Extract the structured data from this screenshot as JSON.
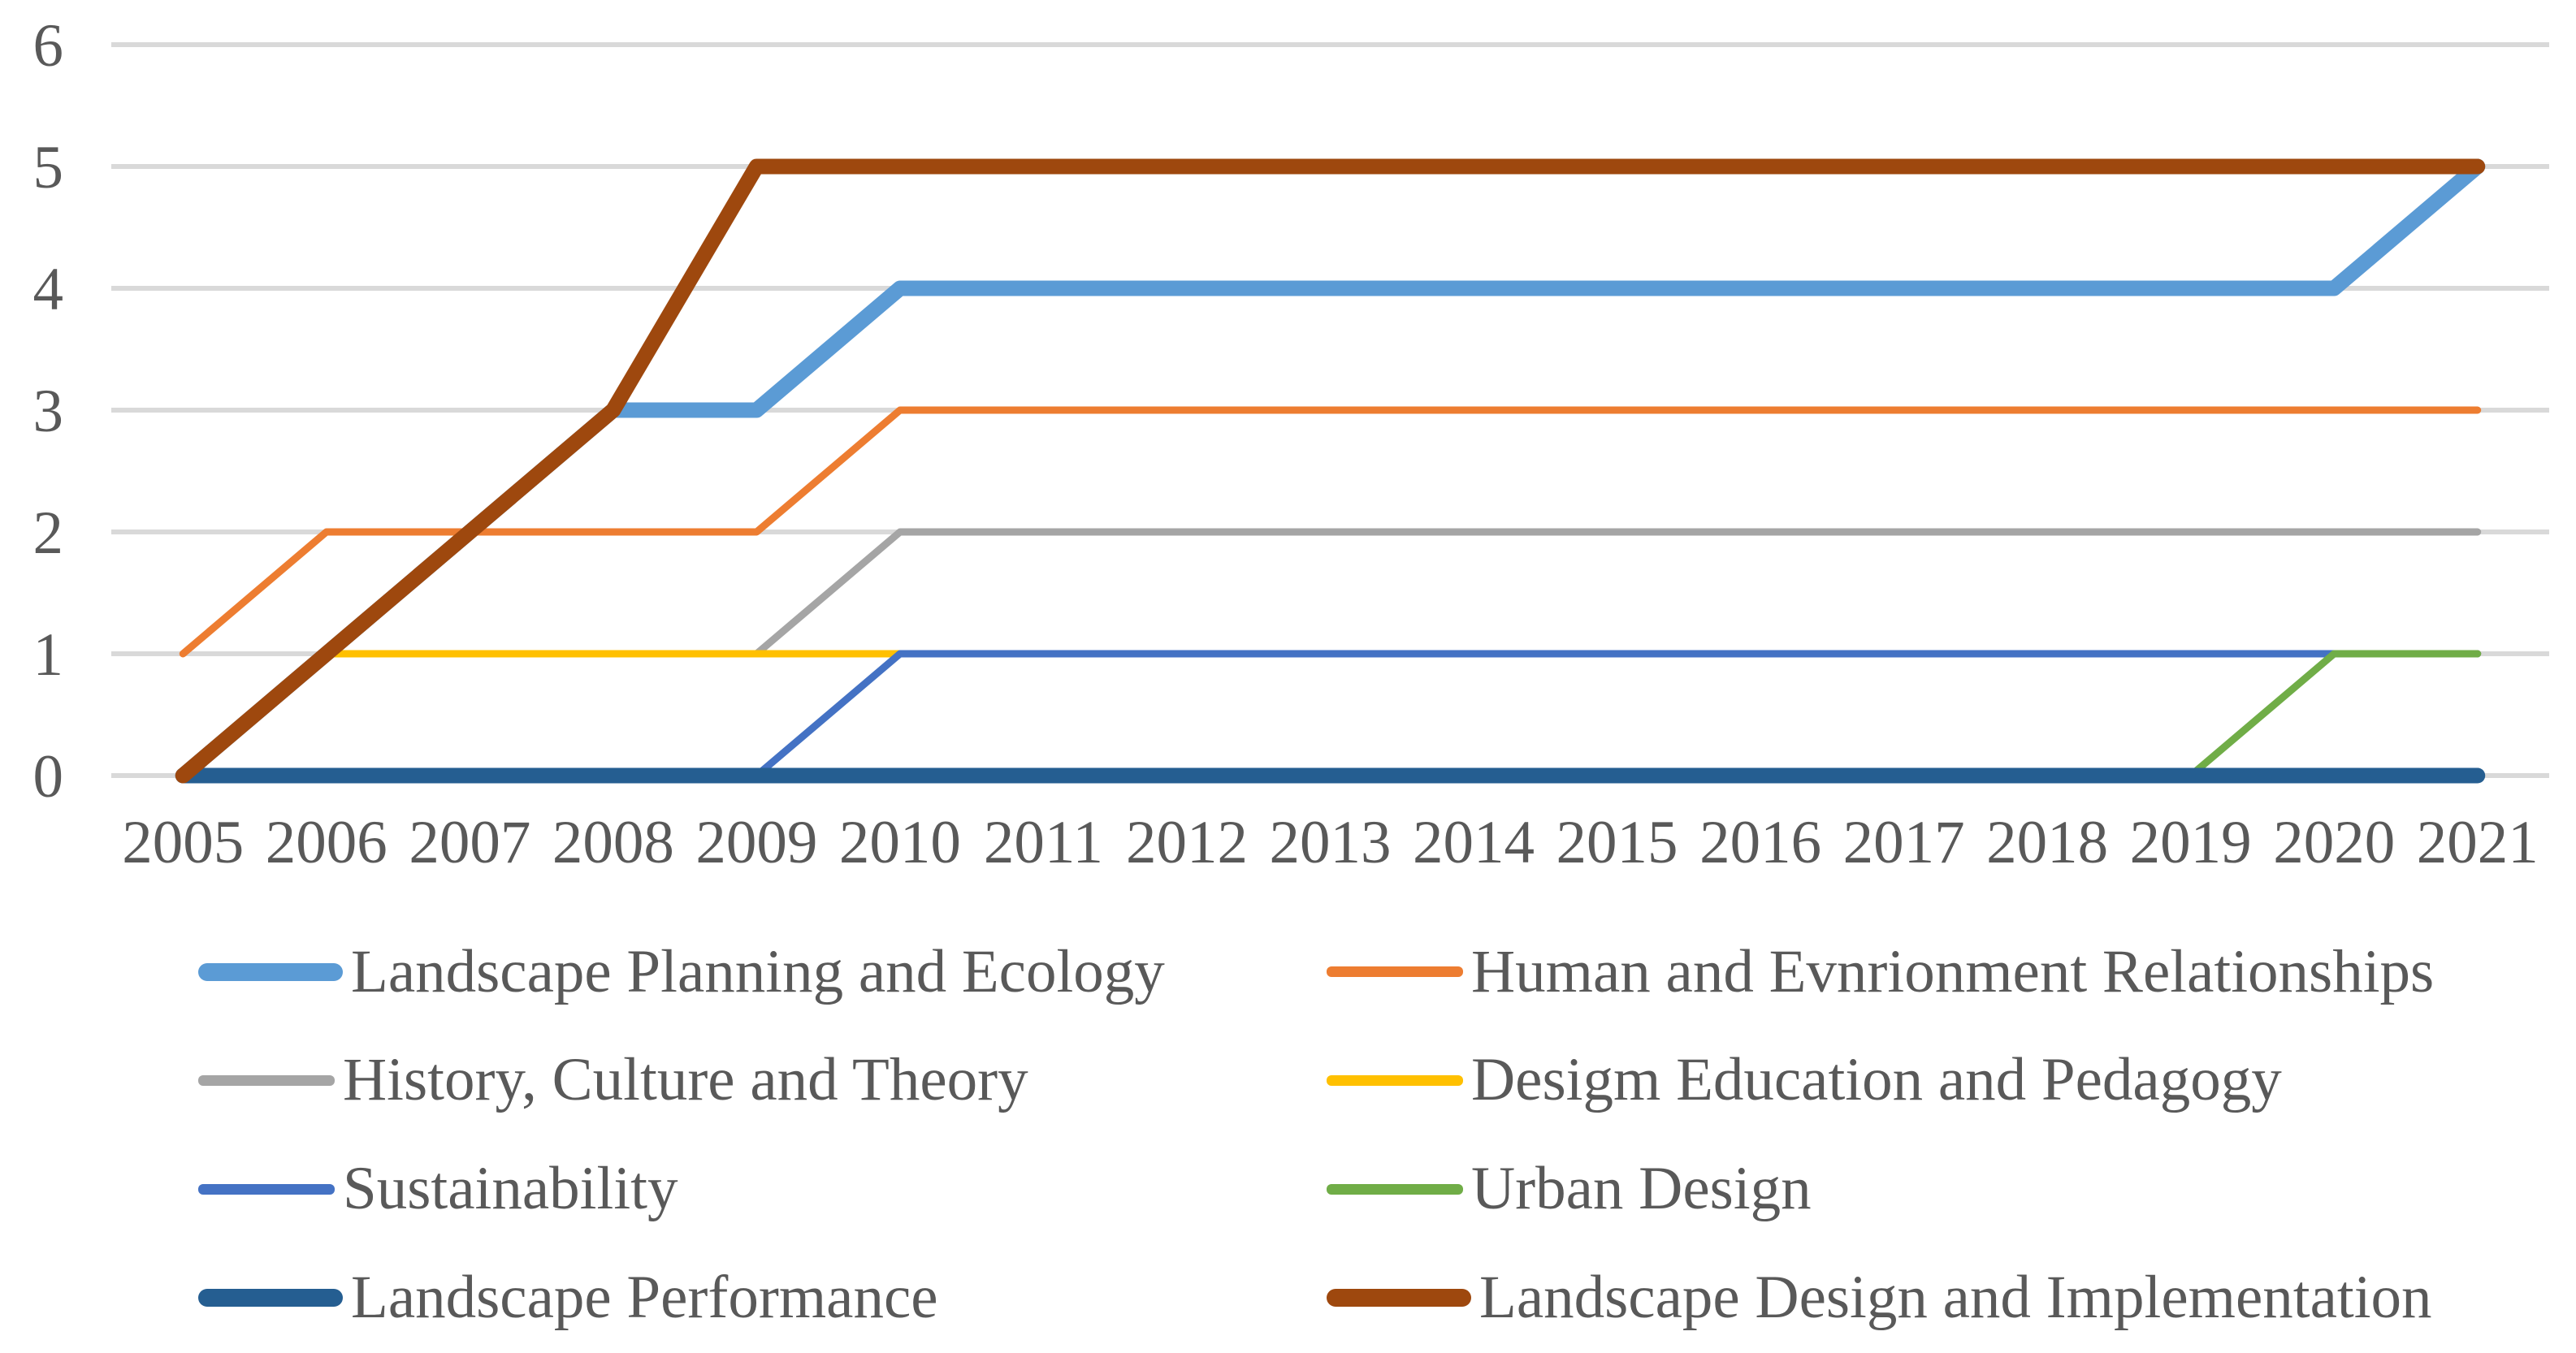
{
  "chart_data": {
    "type": "line",
    "title": "",
    "xlabel": "",
    "ylabel": "",
    "categories": [
      2005,
      2006,
      2007,
      2008,
      2009,
      2010,
      2011,
      2012,
      2013,
      2014,
      2015,
      2016,
      2017,
      2018,
      2019,
      2020,
      2021
    ],
    "y_ticks": [
      0,
      1,
      2,
      3,
      4,
      5,
      6
    ],
    "ylim": [
      0,
      6
    ],
    "grid": true,
    "legend_position": "bottom",
    "series": [
      {
        "name": "Landscape Planning and Ecology",
        "color": "#5B9BD5",
        "thick": true,
        "values": [
          0,
          1,
          2,
          3,
          3,
          4,
          4,
          4,
          4,
          4,
          4,
          4,
          4,
          4,
          4,
          4,
          5
        ]
      },
      {
        "name": "Human and Evnrionment Relationships",
        "color": "#ED7D31",
        "thick": false,
        "values": [
          1,
          2,
          2,
          2,
          2,
          3,
          3,
          3,
          3,
          3,
          3,
          3,
          3,
          3,
          3,
          3,
          3
        ]
      },
      {
        "name": "History, Culture and Theory",
        "color": "#A5A5A5",
        "thick": false,
        "values": [
          0,
          1,
          1,
          1,
          1,
          2,
          2,
          2,
          2,
          2,
          2,
          2,
          2,
          2,
          2,
          2,
          2
        ]
      },
      {
        "name": "Desigm Education and Pedagogy",
        "color": "#FFC000",
        "thick": false,
        "values": [
          0,
          1,
          1,
          1,
          1,
          1,
          1,
          1,
          1,
          1,
          1,
          1,
          1,
          1,
          1,
          1,
          1
        ]
      },
      {
        "name": "Sustainability",
        "color": "#4472C4",
        "thick": false,
        "values": [
          0,
          0,
          0,
          0,
          0,
          1,
          1,
          1,
          1,
          1,
          1,
          1,
          1,
          1,
          1,
          1,
          1
        ]
      },
      {
        "name": "Urban Design",
        "color": "#70AD47",
        "thick": false,
        "values": [
          0,
          0,
          0,
          0,
          0,
          0,
          0,
          0,
          0,
          0,
          0,
          0,
          0,
          0,
          0,
          1,
          1
        ]
      },
      {
        "name": "Landscape Performance",
        "color": "#255E91",
        "thick": true,
        "values": [
          0,
          0,
          0,
          0,
          0,
          0,
          0,
          0,
          0,
          0,
          0,
          0,
          0,
          0,
          0,
          0,
          0
        ]
      },
      {
        "name": "Landscape Design and Implementation",
        "color": "#9E480E",
        "thick": true,
        "values": [
          0,
          1,
          2,
          3,
          5,
          5,
          5,
          5,
          5,
          5,
          5,
          5,
          5,
          5,
          5,
          5,
          5
        ]
      }
    ],
    "colors": {
      "gridline": "#D9D9D9",
      "axis_text": "#595959"
    }
  }
}
